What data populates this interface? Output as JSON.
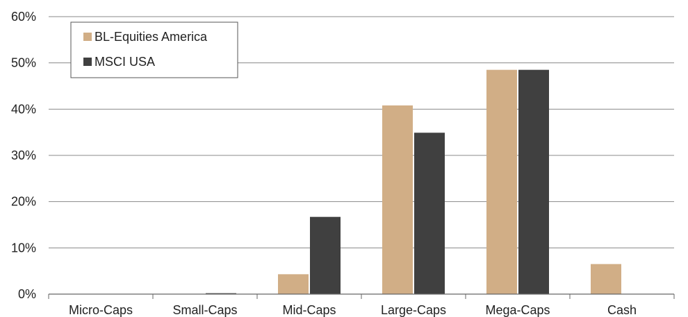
{
  "chart_data": {
    "type": "bar",
    "categories": [
      "Micro-Caps",
      "Small-Caps",
      "Mid-Caps",
      "Large-Caps",
      "Mega-Caps",
      "Cash"
    ],
    "series": [
      {
        "name": "BL-Equities America",
        "color": "#d1ae86",
        "values": [
          0,
          0,
          4.3,
          40.8,
          48.5,
          6.5
        ]
      },
      {
        "name": "MSCI USA",
        "color": "#404040",
        "values": [
          0,
          0.2,
          16.7,
          34.9,
          48.5,
          0
        ]
      }
    ],
    "ylim": [
      0,
      60
    ],
    "yticks": [
      "0%",
      "10%",
      "20%",
      "30%",
      "40%",
      "50%",
      "60%"
    ],
    "grid": true,
    "legend_position": "top-left"
  }
}
